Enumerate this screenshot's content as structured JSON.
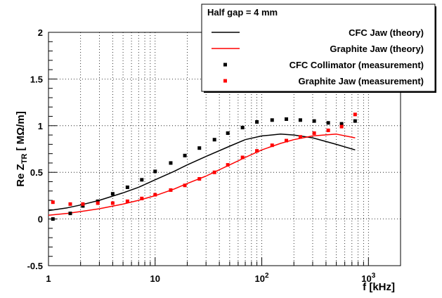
{
  "chart_data": {
    "type": "line",
    "x_scale": "log",
    "xlim": [
      1,
      2000
    ],
    "ylim": [
      -0.5,
      2
    ],
    "x_tick_labels": [
      {
        "value": 1,
        "label": "1"
      },
      {
        "value": 10,
        "label": "10"
      },
      {
        "value": 100,
        "label": "10",
        "exp": "2"
      },
      {
        "value": 1000,
        "label": "10",
        "exp": "3"
      }
    ],
    "y_tick_labels": [
      {
        "value": -0.5,
        "label": "-0.5"
      },
      {
        "value": 0,
        "label": "0"
      },
      {
        "value": 0.5,
        "label": "0.5"
      },
      {
        "value": 1,
        "label": "1"
      },
      {
        "value": 1.5,
        "label": "1.5"
      },
      {
        "value": 2,
        "label": "2"
      }
    ],
    "xlabel": "f [kHz]",
    "ylabel": {
      "main": "Re Z",
      "sub": "TR",
      "unit": "[ MΩ/m]"
    },
    "grid": true,
    "legend_title": "Half gap = 4 mm",
    "legend_position": "top-right",
    "series": [
      {
        "name": "CFC Jaw (theory)",
        "style": "line",
        "color": "#000000",
        "x": [
          1,
          1.5,
          2,
          3,
          5,
          7,
          10,
          15,
          20,
          30,
          50,
          70,
          100,
          150,
          200,
          300,
          500,
          750
        ],
        "y": [
          0.09,
          0.12,
          0.15,
          0.2,
          0.28,
          0.34,
          0.42,
          0.51,
          0.58,
          0.67,
          0.78,
          0.85,
          0.89,
          0.91,
          0.9,
          0.87,
          0.8,
          0.74
        ]
      },
      {
        "name": "Graphite Jaw (theory)",
        "style": "line",
        "color": "#ff0000",
        "x": [
          1,
          1.5,
          2,
          3,
          5,
          7,
          10,
          15,
          20,
          30,
          50,
          70,
          100,
          150,
          200,
          300,
          500,
          750
        ],
        "y": [
          0.04,
          0.06,
          0.08,
          0.11,
          0.16,
          0.2,
          0.25,
          0.32,
          0.38,
          0.46,
          0.58,
          0.66,
          0.74,
          0.81,
          0.85,
          0.89,
          0.91,
          0.87
        ]
      },
      {
        "name": "CFC Collimator (measurement)",
        "style": "marker",
        "color": "#000000",
        "x": [
          1.1,
          1.6,
          2.1,
          2.9,
          4,
          5.5,
          7.5,
          10,
          14,
          19,
          26,
          36,
          48,
          66,
          90,
          125,
          170,
          230,
          310,
          420,
          560,
          750
        ],
        "y": [
          0,
          0.06,
          0.14,
          0.19,
          0.27,
          0.34,
          0.42,
          0.51,
          0.6,
          0.68,
          0.76,
          0.85,
          0.92,
          0.98,
          1.04,
          1.06,
          1.07,
          1.06,
          1.05,
          1.03,
          1.02,
          1.05
        ]
      },
      {
        "name": "Graphite Jaw (measurement)",
        "style": "marker",
        "color": "#ff0000",
        "x": [
          1.1,
          1.6,
          2.1,
          2.9,
          4,
          5.5,
          7.5,
          10,
          14,
          19,
          26,
          36,
          48,
          66,
          90,
          125,
          170,
          230,
          310,
          420,
          560,
          750
        ],
        "y": [
          0.18,
          0.16,
          0.16,
          0.17,
          0.17,
          0.19,
          0.22,
          0.26,
          0.31,
          0.36,
          0.43,
          0.5,
          0.58,
          0.66,
          0.73,
          0.79,
          0.84,
          0.88,
          0.92,
          0.95,
          0.99,
          1.12
        ]
      }
    ]
  }
}
